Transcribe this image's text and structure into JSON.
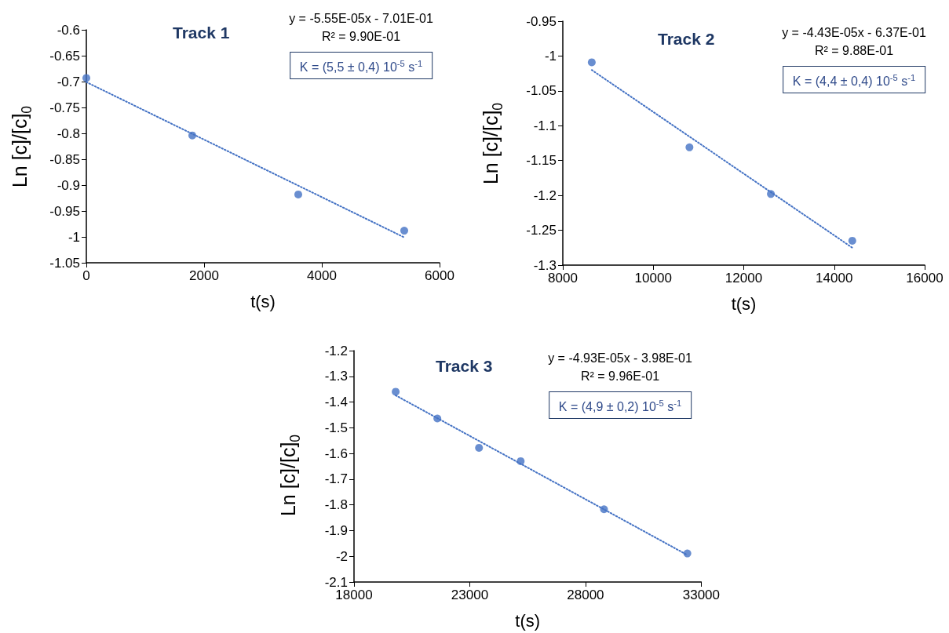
{
  "chart_data": [
    {
      "type": "scatter",
      "title": "Track 1",
      "xlabel": "t(s)",
      "ylabel": "Ln [c]/[c]$_{0}$",
      "marker": "circle",
      "grid": false,
      "annotations": [
        "y = -5.55E-05x - 7.01E-01",
        "R² = 9.90E-01",
        "K = (5,5 ± 0,4) 10$^{-5}$ s$^{-1}$"
      ],
      "xlim": [
        0,
        6000
      ],
      "xticks": [
        0,
        2000,
        4000,
        6000
      ],
      "ylim": [
        -1.05,
        -0.6
      ],
      "yticks": [
        -1.05,
        -1,
        -0.95,
        -0.9,
        -0.85,
        -0.8,
        -0.75,
        -0.7,
        -0.65,
        -0.6
      ],
      "series": [
        {
          "type": "scatter",
          "color": "#4472c4",
          "x": [
            0,
            1800,
            3600,
            5400
          ],
          "values": [
            -0.693,
            -0.804,
            -0.918,
            -0.988
          ]
        },
        {
          "type": "line",
          "color": "#4472c4",
          "line_style": "dotted",
          "marker": "none",
          "x": [
            0,
            5400
          ],
          "values": [
            -0.701,
            -1.001
          ]
        }
      ]
    },
    {
      "type": "scatter",
      "title": "Track 2",
      "xlabel": "t(s)",
      "ylabel": "Ln [c]/[c]$_{0}$",
      "marker": "circle",
      "grid": false,
      "annotations": [
        "y = -4.43E-05x - 6.37E-01",
        "R² = 9.88E-01",
        "K = (4,4 ± 0,4) 10$^{-5}$ s$^{-1}$"
      ],
      "xlim": [
        8000,
        16000
      ],
      "xticks": [
        8000,
        10000,
        12000,
        14000,
        16000
      ],
      "ylim": [
        -1.3,
        -0.95
      ],
      "yticks": [
        -1.3,
        -1.25,
        -1.2,
        -1.15,
        -1.1,
        -1.05,
        -1,
        -0.95
      ],
      "series": [
        {
          "type": "scatter",
          "color": "#4472c4",
          "x": [
            8640,
            10800,
            12600,
            14400
          ],
          "values": [
            -1.009,
            -1.131,
            -1.198,
            -1.265
          ]
        },
        {
          "type": "line",
          "color": "#4472c4",
          "line_style": "dotted",
          "marker": "none",
          "x": [
            8640,
            14400
          ],
          "values": [
            -1.02,
            -1.275
          ]
        }
      ]
    },
    {
      "type": "scatter",
      "title": "Track 3",
      "xlabel": "t(s)",
      "ylabel": "Ln [c]/[c]$_{0}$",
      "marker": "circle",
      "grid": false,
      "annotations": [
        "y = -4.93E-05x - 3.98E-01",
        "R² = 9.96E-01",
        "K = (4,9 ± 0,2) 10$^{-5}$ s$^{-1}$"
      ],
      "xlim": [
        18000,
        33000
      ],
      "xticks": [
        18000,
        23000,
        28000,
        33000
      ],
      "ylim": [
        -2.1,
        -1.2
      ],
      "yticks": [
        -2.1,
        -2,
        -1.9,
        -1.8,
        -1.7,
        -1.6,
        -1.5,
        -1.4,
        -1.3,
        -1.2
      ],
      "series": [
        {
          "type": "scatter",
          "color": "#4472c4",
          "x": [
            19800,
            21600,
            23400,
            25200,
            28800,
            32400
          ],
          "values": [
            -1.36,
            -1.464,
            -1.578,
            -1.63,
            -1.817,
            -1.989
          ]
        },
        {
          "type": "line",
          "color": "#4472c4",
          "line_style": "dotted",
          "marker": "none",
          "x": [
            19800,
            32400
          ],
          "values": [
            -1.374,
            -1.995
          ]
        }
      ]
    }
  ]
}
